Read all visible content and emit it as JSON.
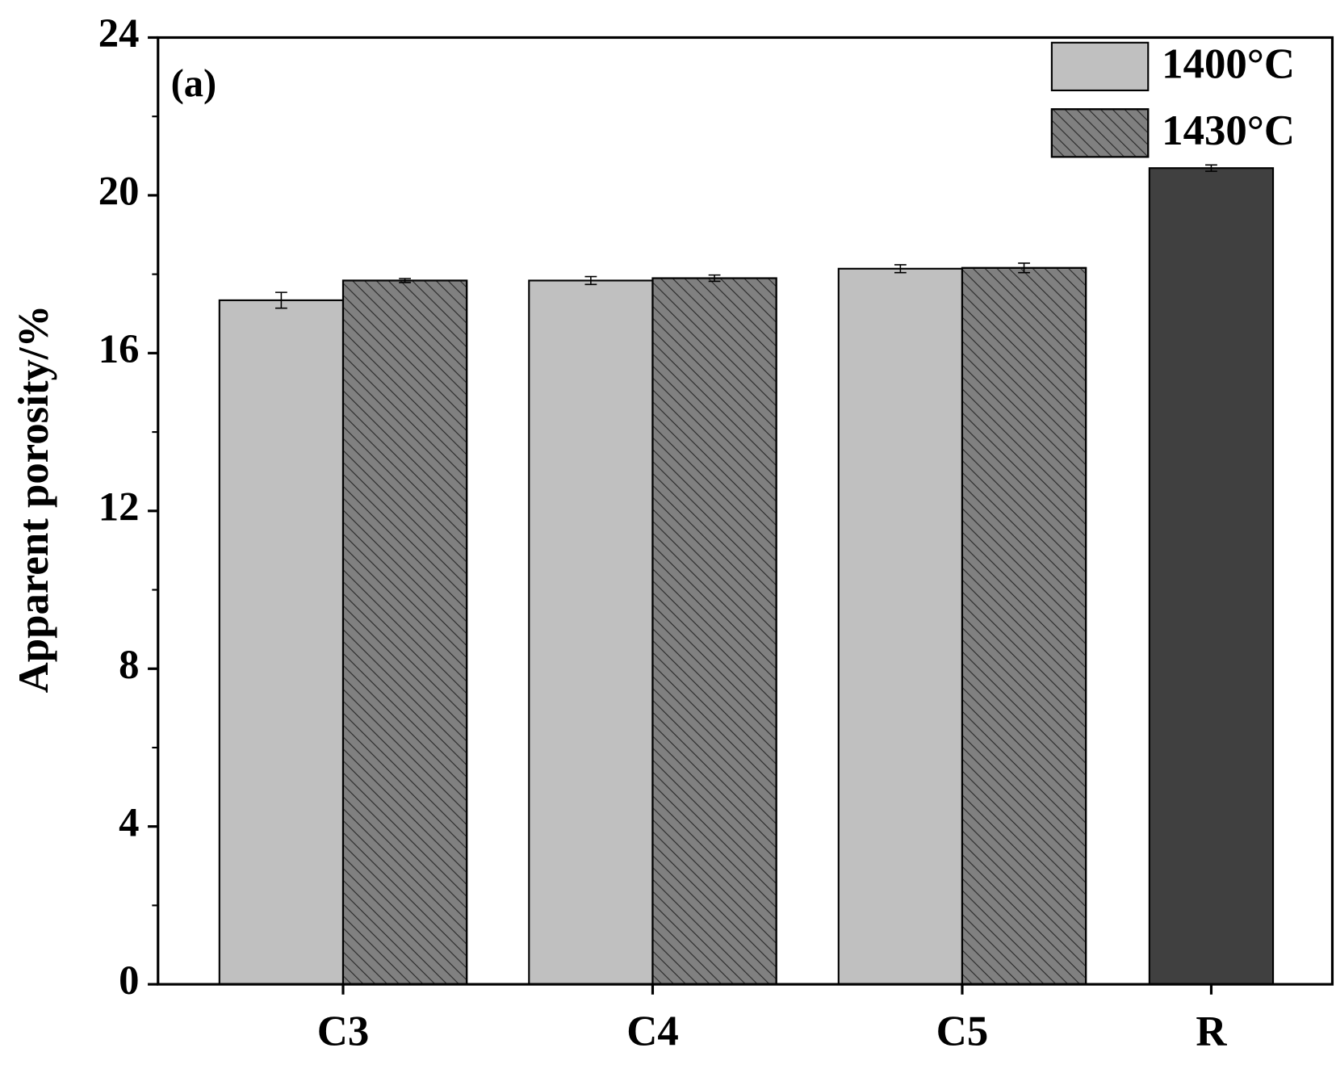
{
  "chart_data": {
    "type": "bar",
    "y_label": "Apparent porosity/%",
    "annotation": "(a)",
    "categories": [
      "C3",
      "C4",
      "C5",
      "R"
    ],
    "series": [
      {
        "name": "1400°C",
        "color": "#c0c0c0",
        "hatch": false,
        "values": [
          17.34,
          17.84,
          18.14,
          null
        ],
        "errors": [
          0.2,
          0.1,
          0.1,
          null
        ]
      },
      {
        "name": "1430°C",
        "color": "#808080",
        "hatch": true,
        "values": [
          17.84,
          17.9,
          18.16,
          null
        ],
        "errors": [
          0.05,
          0.08,
          0.12,
          null
        ]
      },
      {
        "color": "#404040",
        "hatch": false,
        "values": [
          null,
          null,
          null,
          20.69
        ],
        "errors": [
          null,
          null,
          null,
          0.08
        ]
      }
    ],
    "ylim": [
      0,
      24
    ],
    "yticks": [
      0,
      4,
      8,
      12,
      16,
      20,
      24
    ],
    "yticks_minor": [
      2,
      6,
      10,
      14,
      18,
      22
    ],
    "legend": "upper right"
  }
}
